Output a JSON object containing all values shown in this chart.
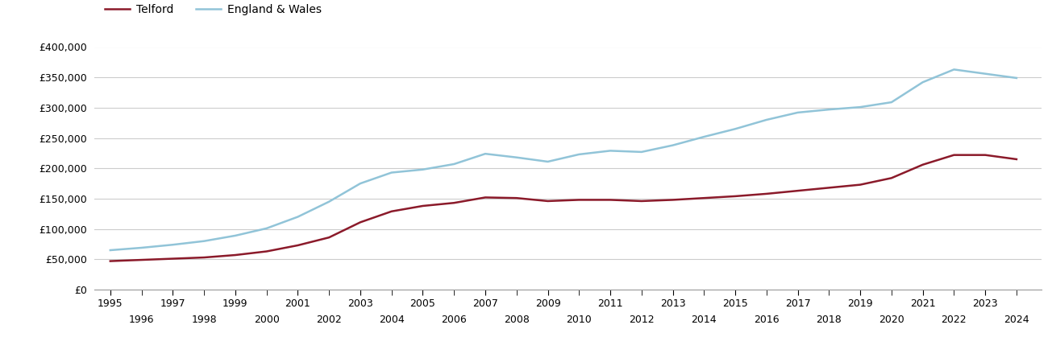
{
  "telford_years": [
    1995,
    1996,
    1997,
    1998,
    1999,
    2000,
    2001,
    2002,
    2003,
    2004,
    2005,
    2006,
    2007,
    2008,
    2009,
    2010,
    2011,
    2012,
    2013,
    2014,
    2015,
    2016,
    2017,
    2018,
    2019,
    2020,
    2021,
    2022,
    2023,
    2024
  ],
  "telford_values": [
    47000,
    49000,
    51000,
    53000,
    57000,
    63000,
    73000,
    86000,
    111000,
    129000,
    138000,
    143000,
    152000,
    151000,
    146000,
    148000,
    148000,
    146000,
    148000,
    151000,
    154000,
    158000,
    163000,
    168000,
    173000,
    184000,
    206000,
    222000,
    222000,
    215000
  ],
  "ew_years": [
    1995,
    1996,
    1997,
    1998,
    1999,
    2000,
    2001,
    2002,
    2003,
    2004,
    2005,
    2006,
    2007,
    2008,
    2009,
    2010,
    2011,
    2012,
    2013,
    2014,
    2015,
    2016,
    2017,
    2018,
    2019,
    2020,
    2021,
    2022,
    2023,
    2024
  ],
  "ew_values": [
    65000,
    69000,
    74000,
    80000,
    89000,
    101000,
    120000,
    145000,
    175000,
    193000,
    198000,
    207000,
    224000,
    218000,
    211000,
    223000,
    229000,
    227000,
    238000,
    252000,
    265000,
    280000,
    292000,
    297000,
    301000,
    309000,
    342000,
    363000,
    356000,
    349000
  ],
  "telford_color": "#8b1a2a",
  "ew_color": "#91c4d8",
  "telford_label": "Telford",
  "ew_label": "England & Wales",
  "ylim": [
    0,
    400000
  ],
  "yticks": [
    0,
    50000,
    100000,
    150000,
    200000,
    250000,
    300000,
    350000,
    400000
  ],
  "background_color": "#ffffff",
  "grid_color": "#cccccc",
  "line_width": 1.8
}
